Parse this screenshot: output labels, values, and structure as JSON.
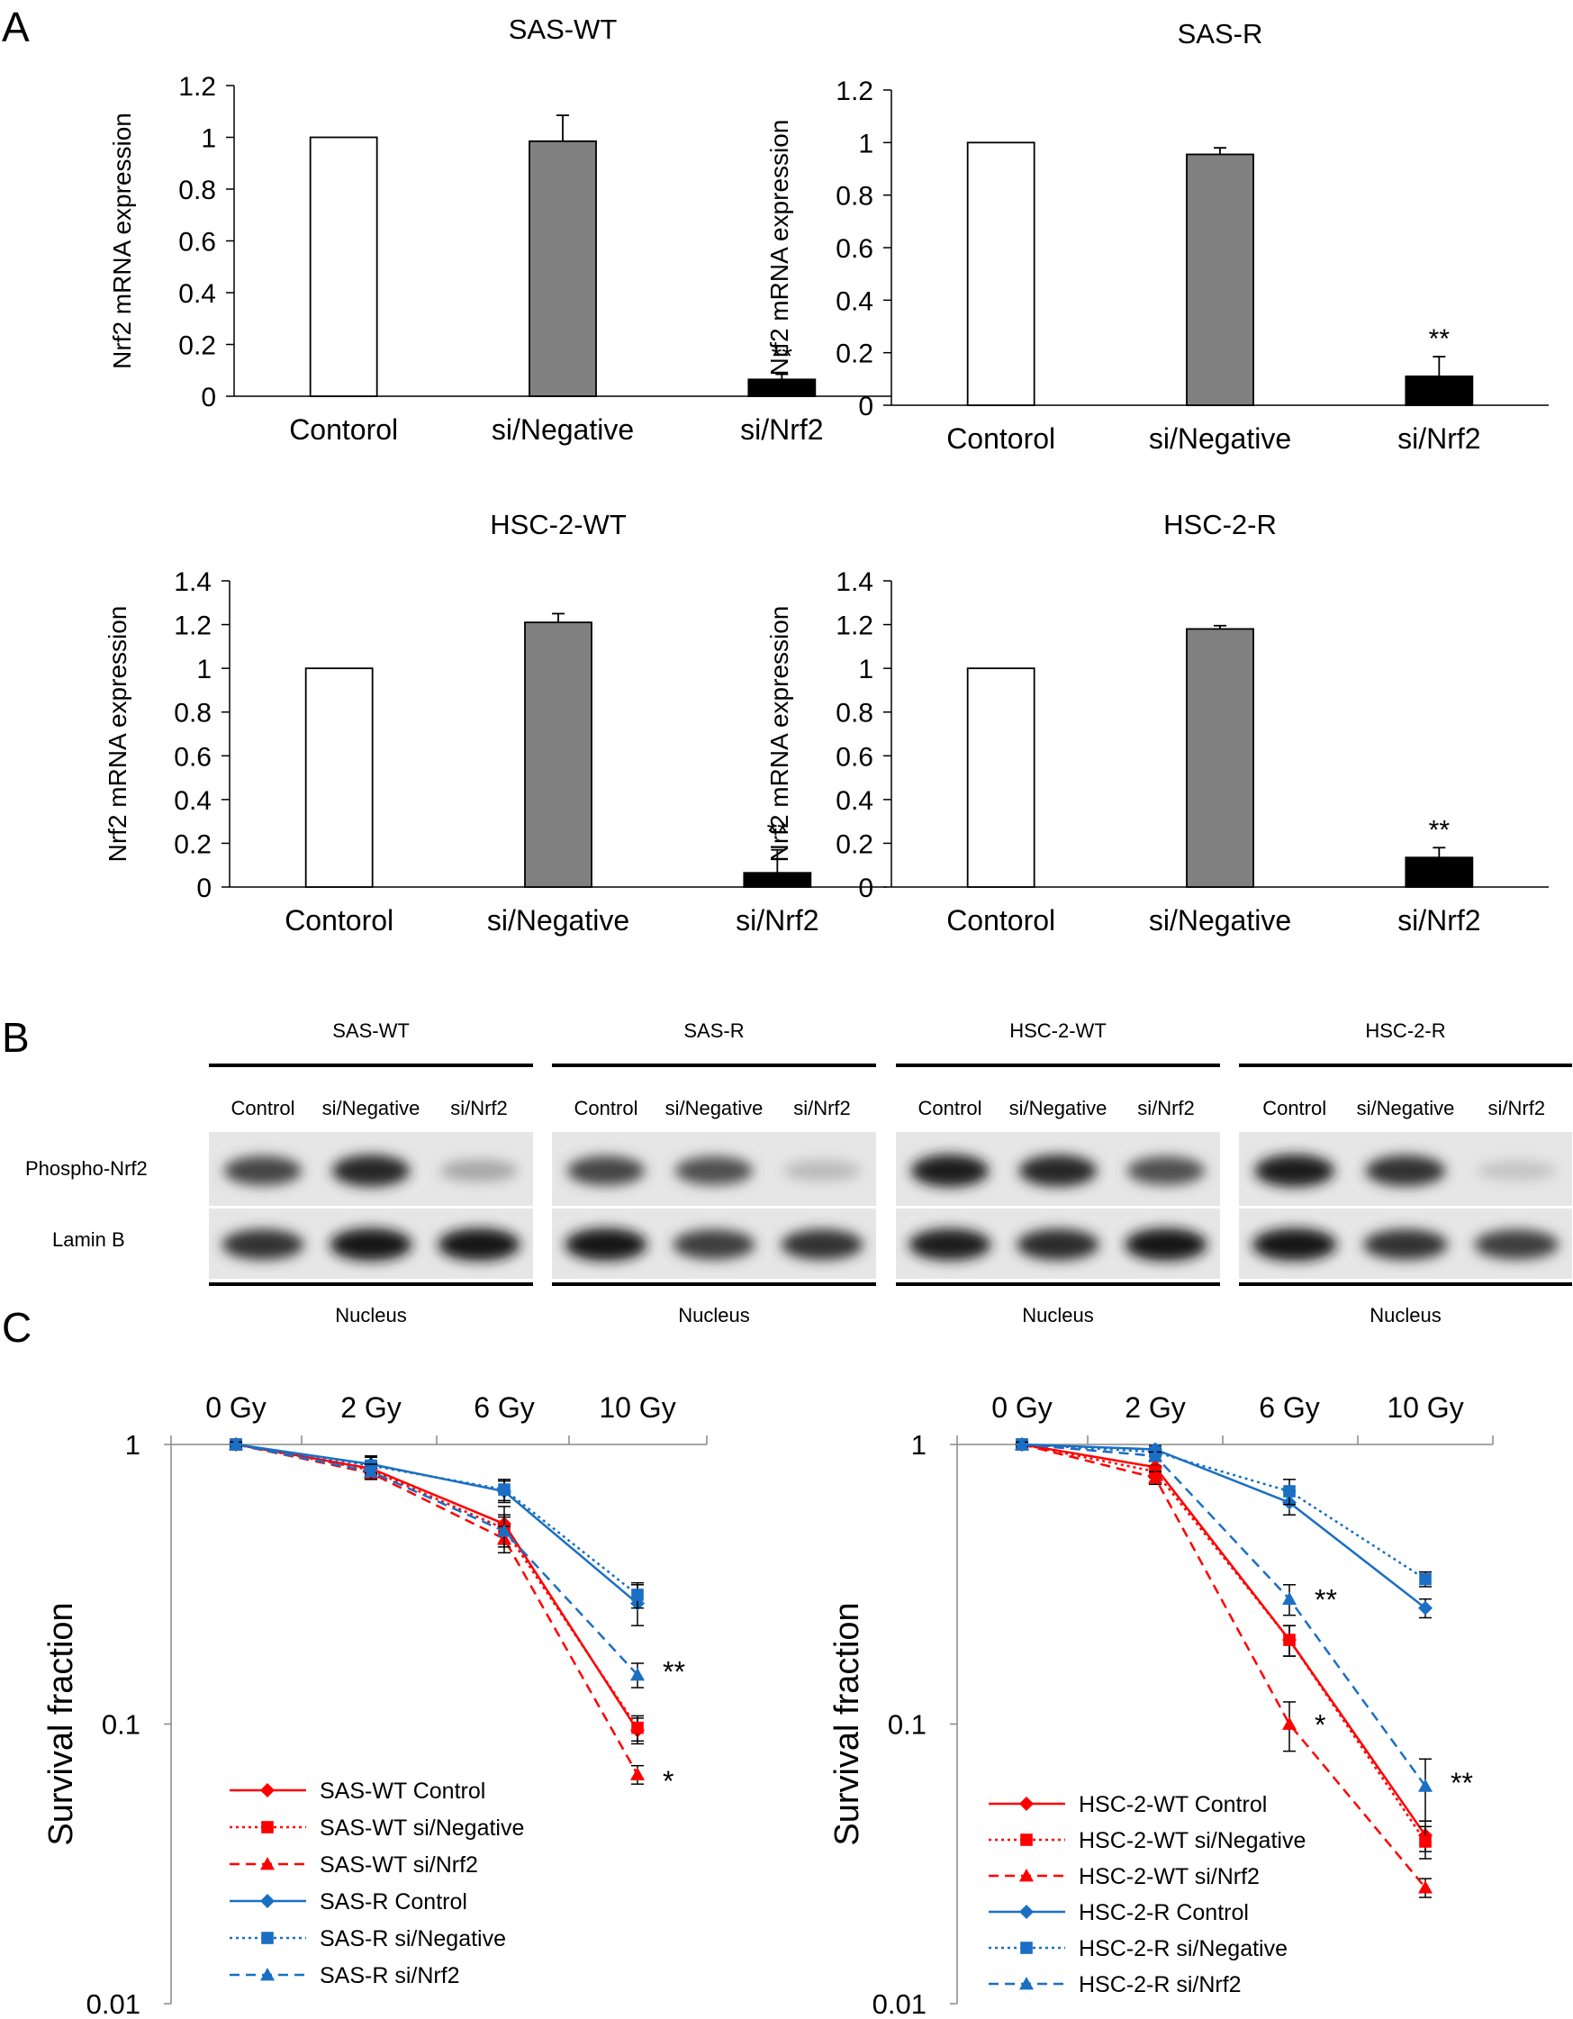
{
  "panels": {
    "A": "A",
    "B": "B",
    "C": "C"
  },
  "colors": {
    "control_bar": "#ffffff",
    "negative_bar": "#808080",
    "nrf2_bar": "#000000",
    "red": "#ff0000",
    "blue": "#1a6fc4"
  },
  "chart_data": [
    {
      "type": "bar",
      "panel": "A",
      "title": "SAS-WT",
      "ylabel": "Nrf2 mRNA expression",
      "categories": [
        "Contorol",
        "si/Negative",
        "si/Nrf2"
      ],
      "values": [
        1.0,
        0.985,
        0.065
      ],
      "errors": [
        0,
        0.1,
        0.02
      ],
      "annotations": [
        "",
        "",
        "**"
      ],
      "ylim": [
        0,
        1.2
      ],
      "yticks": [
        "0",
        "0.2",
        "0.4",
        "0.6",
        "0.8",
        "1",
        "1.2"
      ]
    },
    {
      "type": "bar",
      "panel": "A",
      "title": "SAS-R",
      "ylabel": "Nrf2 mRNA expression",
      "categories": [
        "Contorol",
        "si/Negative",
        "si/Nrf2"
      ],
      "values": [
        1.0,
        0.955,
        0.11
      ],
      "errors": [
        0,
        0.025,
        0.075
      ],
      "annotations": [
        "",
        "",
        "**"
      ],
      "ylim": [
        0,
        1.2
      ],
      "yticks": [
        "0",
        "0.2",
        "0.4",
        "0.6",
        "0.8",
        "1",
        "1.2"
      ]
    },
    {
      "type": "bar",
      "panel": "A",
      "title": "HSC-2-WT",
      "ylabel": "Nrf2 mRNA expression",
      "categories": [
        "Contorol",
        "si/Negative",
        "si/Nrf2"
      ],
      "values": [
        1.0,
        1.21,
        0.065
      ],
      "errors": [
        0,
        0.04,
        0.105
      ],
      "annotations": [
        "",
        "",
        "**"
      ],
      "ylim": [
        0,
        1.4
      ],
      "yticks": [
        "0",
        "0.2",
        "0.4",
        "0.6",
        "0.8",
        "1",
        "1.2",
        "1.4"
      ]
    },
    {
      "type": "bar",
      "panel": "A",
      "title": "HSC-2-R",
      "ylabel": "Nrf2 mRNA expression",
      "categories": [
        "Contorol",
        "si/Negative",
        "si/Nrf2"
      ],
      "values": [
        1.0,
        1.18,
        0.135
      ],
      "errors": [
        0,
        0.015,
        0.045
      ],
      "annotations": [
        "",
        "",
        "**"
      ],
      "ylim": [
        0,
        1.4
      ],
      "yticks": [
        "0",
        "0.2",
        "0.4",
        "0.6",
        "0.8",
        "1",
        "1.2",
        "1.4"
      ]
    },
    {
      "type": "line",
      "panel": "C",
      "ylabel": "Survival fraction",
      "yscale": "log",
      "ylim": [
        0.01,
        1
      ],
      "yticks": [
        "0.01",
        "0.1",
        "1"
      ],
      "categories": [
        "0 Gy",
        "2 Gy",
        "6 Gy",
        "10 Gy"
      ],
      "legend_position": "bottom-left",
      "series": [
        {
          "name": "SAS-WT Control",
          "color": "#ff0000",
          "dash": "solid",
          "marker": "diamond",
          "values": [
            1,
            0.82,
            0.52,
            0.095
          ],
          "errors": [
            0.02,
            0.05,
            0.08,
            0.01
          ]
        },
        {
          "name": "SAS-WT si/Negative",
          "color": "#ff0000",
          "dash": "dotted",
          "marker": "square",
          "values": [
            1,
            0.81,
            0.5,
            0.097
          ],
          "errors": [
            0.02,
            0.05,
            0.06,
            0.01
          ]
        },
        {
          "name": "SAS-WT si/Nrf2",
          "color": "#ff0000",
          "dash": "dashed",
          "marker": "triangle",
          "values": [
            1,
            0.79,
            0.46,
            0.066
          ],
          "errors": [
            0.02,
            0.04,
            0.05,
            0.005
          ]
        },
        {
          "name": "SAS-R Control",
          "color": "#1a6fc4",
          "dash": "solid",
          "marker": "diamond",
          "values": [
            1,
            0.85,
            0.68,
            0.27
          ],
          "errors": [
            0.02,
            0.06,
            0.06,
            0.045
          ]
        },
        {
          "name": "SAS-R si/Negative",
          "color": "#1a6fc4",
          "dash": "dotted",
          "marker": "square",
          "values": [
            1,
            0.84,
            0.69,
            0.29
          ],
          "errors": [
            0.02,
            0.06,
            0.06,
            0.03
          ]
        },
        {
          "name": "SAS-R si/Nrf2",
          "color": "#1a6fc4",
          "dash": "dashed",
          "marker": "triangle",
          "values": [
            1,
            0.8,
            0.49,
            0.15
          ],
          "errors": [
            0.02,
            0.05,
            0.06,
            0.015
          ]
        }
      ],
      "annotations": [
        {
          "category": "10 Gy",
          "y": 0.155,
          "text": "**"
        },
        {
          "category": "10 Gy",
          "y": 0.063,
          "text": "*"
        }
      ]
    },
    {
      "type": "line",
      "panel": "C",
      "ylabel": "Survival fraction",
      "yscale": "log",
      "ylim": [
        0.01,
        1
      ],
      "yticks": [
        "0.01",
        "0.1",
        "1"
      ],
      "categories": [
        "0 Gy",
        "2 Gy",
        "6 Gy",
        "10 Gy"
      ],
      "legend_position": "bottom-left",
      "series": [
        {
          "name": "HSC-2-WT Control",
          "color": "#ff0000",
          "dash": "solid",
          "marker": "diamond",
          "values": [
            1,
            0.83,
            0.2,
            0.04
          ],
          "errors": [
            0.02,
            0.04,
            0.025,
            0.005
          ]
        },
        {
          "name": "HSC-2-WT si/Negative",
          "color": "#ff0000",
          "dash": "dotted",
          "marker": "square",
          "values": [
            1,
            0.8,
            0.2,
            0.038
          ],
          "errors": [
            0.02,
            0.04,
            0.025,
            0.005
          ]
        },
        {
          "name": "HSC-2-WT si/Nrf2",
          "color": "#ff0000",
          "dash": "dashed",
          "marker": "triangle",
          "values": [
            1,
            0.76,
            0.1,
            0.026
          ],
          "errors": [
            0.02,
            0.04,
            0.02,
            0.002
          ]
        },
        {
          "name": "HSC-2-R Control",
          "color": "#1a6fc4",
          "dash": "solid",
          "marker": "diamond",
          "values": [
            1,
            0.96,
            0.62,
            0.26
          ],
          "errors": [
            0.02,
            0.03,
            0.06,
            0.02
          ]
        },
        {
          "name": "HSC-2-R si/Negative",
          "color": "#1a6fc4",
          "dash": "dotted",
          "marker": "square",
          "values": [
            1,
            0.94,
            0.68,
            0.33
          ],
          "errors": [
            0.02,
            0.03,
            0.07,
            0.02
          ]
        },
        {
          "name": "HSC-2-R si/Nrf2",
          "color": "#1a6fc4",
          "dash": "dashed",
          "marker": "triangle",
          "values": [
            1,
            0.91,
            0.28,
            0.06
          ],
          "errors": [
            0.02,
            0.03,
            0.035,
            0.015
          ]
        }
      ],
      "annotations": [
        {
          "category": "6 Gy",
          "y": 0.28,
          "text": "**"
        },
        {
          "category": "6 Gy",
          "y": 0.1,
          "text": "*"
        },
        {
          "category": "10 Gy",
          "y": 0.062,
          "text": "**"
        }
      ]
    }
  ],
  "western_blot": {
    "row_labels": [
      "Phospho-Nrf2",
      "Lamin B"
    ],
    "footer": "Nucleus",
    "groups": [
      {
        "title": "SAS-WT",
        "lanes": [
          "Control",
          "si/Negative",
          "si/Nrf2"
        ],
        "phospho_intensity": [
          0.8,
          0.95,
          0.3
        ],
        "lamin_intensity": [
          0.85,
          1.0,
          1.0
        ]
      },
      {
        "title": "SAS-R",
        "lanes": [
          "Control",
          "si/Negative",
          "si/Nrf2"
        ],
        "phospho_intensity": [
          0.8,
          0.75,
          0.2
        ],
        "lamin_intensity": [
          1.0,
          0.8,
          0.85
        ]
      },
      {
        "title": "HSC-2-WT",
        "lanes": [
          "Control",
          "si/Negative",
          "si/Nrf2"
        ],
        "phospho_intensity": [
          1.0,
          0.95,
          0.75
        ],
        "lamin_intensity": [
          0.95,
          0.9,
          1.0
        ]
      },
      {
        "title": "HSC-2-R",
        "lanes": [
          "Control",
          "si/Negative",
          "si/Nrf2"
        ],
        "phospho_intensity": [
          1.0,
          0.9,
          0.15
        ],
        "lamin_intensity": [
          1.0,
          0.85,
          0.8
        ]
      }
    ]
  }
}
